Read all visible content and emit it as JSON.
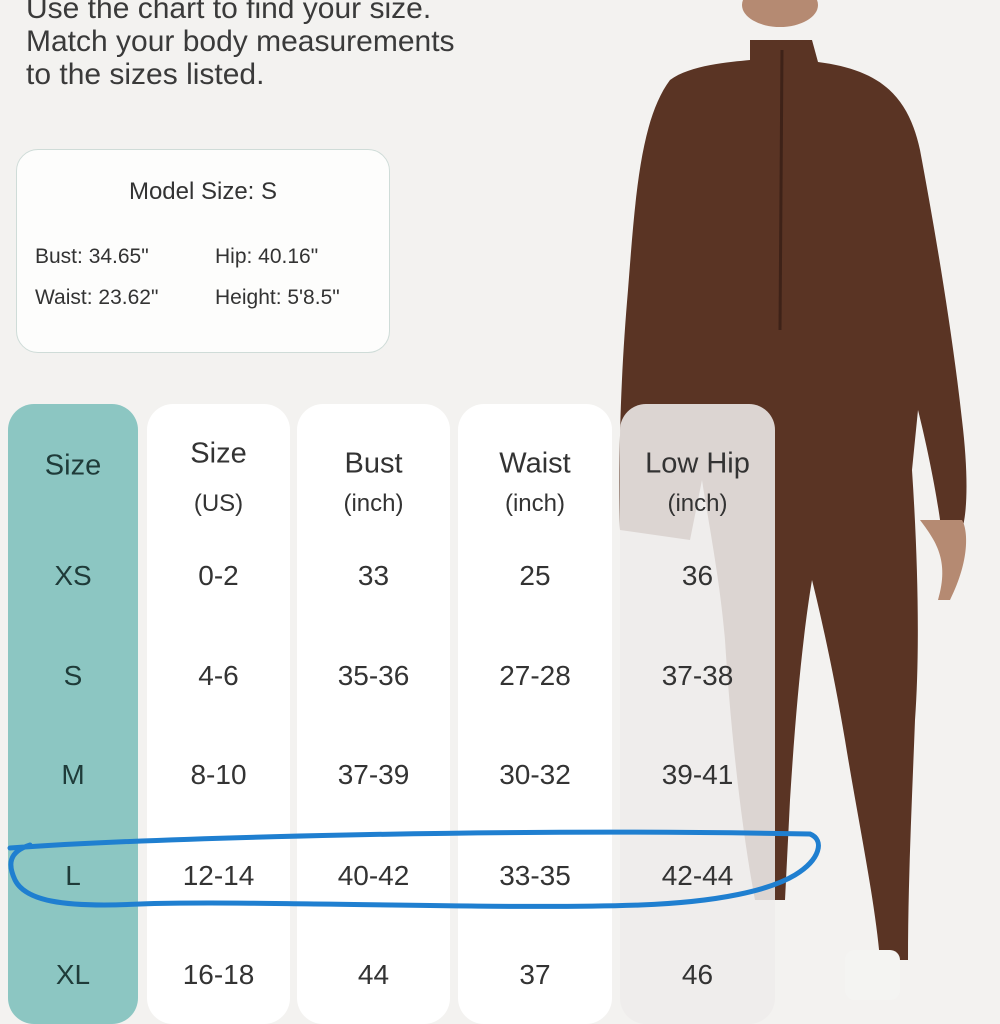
{
  "intro": {
    "lines": [
      "Use the chart to find your size.",
      "Match your body measurements",
      "to the sizes listed."
    ]
  },
  "model_card": {
    "title": "Model Size:  S",
    "bust": "Bust: 34.65\"",
    "hip": "Hip: 40.16\"",
    "waist": "Waist: 23.62\"",
    "height": "Height: 5'8.5\""
  },
  "size_table": {
    "columns": [
      {
        "title": "Size",
        "unit": ""
      },
      {
        "title": "Size",
        "unit": "(US)"
      },
      {
        "title": "Bust",
        "unit": "(inch)"
      },
      {
        "title": "Waist",
        "unit": "(inch)"
      },
      {
        "title": "Low Hip",
        "unit": "(inch)"
      }
    ],
    "rows": [
      [
        "XS",
        "0-2",
        "33",
        "25",
        "36"
      ],
      [
        "S",
        "4-6",
        "35-36",
        "27-28",
        "37-38"
      ],
      [
        "M",
        "8-10",
        "37-39",
        "30-32",
        "39-41"
      ],
      [
        "L",
        "12-14",
        "40-42",
        "33-35",
        "42-44"
      ],
      [
        "XL",
        "16-18",
        "44",
        "37",
        "46"
      ]
    ],
    "highlighted_row": "L"
  },
  "colors": {
    "accent_teal": "#8cc6c2",
    "highlight_marker": "#1f7fd0",
    "garment_brown": "#5a3424"
  }
}
